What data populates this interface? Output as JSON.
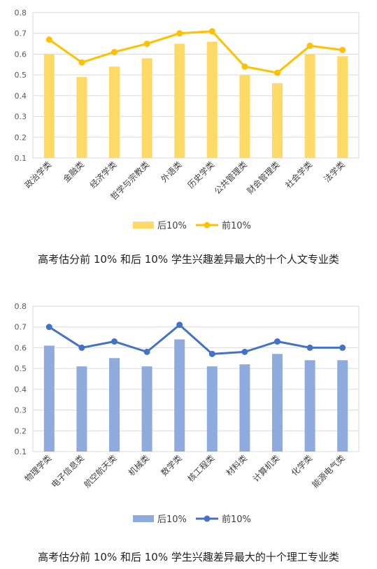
{
  "chart_data": [
    {
      "type": "bar",
      "categories": [
        "政治学类",
        "金融类",
        "经济学类",
        "哲学与宗教类",
        "外语类",
        "历史学类",
        "公共管理类",
        "财会管理类",
        "社会学类",
        "法学类"
      ],
      "series": [
        {
          "name": "后10%",
          "type": "bar",
          "color": "#FFD966",
          "values": [
            0.6,
            0.49,
            0.54,
            0.58,
            0.65,
            0.66,
            0.5,
            0.46,
            0.6,
            0.59
          ]
        },
        {
          "name": "前10%",
          "type": "line",
          "color": "#FFC000",
          "values": [
            0.67,
            0.56,
            0.61,
            0.65,
            0.7,
            0.71,
            0.54,
            0.51,
            0.64,
            0.62
          ]
        }
      ],
      "ylim": [
        0.1,
        0.8
      ],
      "yticks": [
        "0.1",
        "0.2",
        "0.3",
        "0.4",
        "0.5",
        "0.6",
        "0.7",
        "0.8"
      ],
      "grid": true,
      "legend_position": "bottom",
      "caption": "高考估分前 10% 和后 10% 学生兴趣差异最大的十个人文专业类"
    },
    {
      "type": "bar",
      "categories": [
        "物理学类",
        "电子信息类",
        "航空航天类",
        "机械类",
        "数学类",
        "核工程类",
        "材料类",
        "计算机类",
        "化学类",
        "能源电气类"
      ],
      "series": [
        {
          "name": "后10%",
          "type": "bar",
          "color": "#8FAADC",
          "values": [
            0.61,
            0.51,
            0.55,
            0.51,
            0.64,
            0.51,
            0.52,
            0.57,
            0.54,
            0.54
          ]
        },
        {
          "name": "前10%",
          "type": "line",
          "color": "#4472C4",
          "values": [
            0.7,
            0.6,
            0.63,
            0.58,
            0.71,
            0.57,
            0.58,
            0.63,
            0.6,
            0.6
          ]
        }
      ],
      "ylim": [
        0.1,
        0.8
      ],
      "yticks": [
        "0.1",
        "0.2",
        "0.3",
        "0.4",
        "0.5",
        "0.6",
        "0.7",
        "0.8"
      ],
      "grid": true,
      "legend_position": "bottom",
      "caption": "高考估分前 10% 和后 10% 学生兴趣差异最大的十个理工专业类"
    }
  ]
}
